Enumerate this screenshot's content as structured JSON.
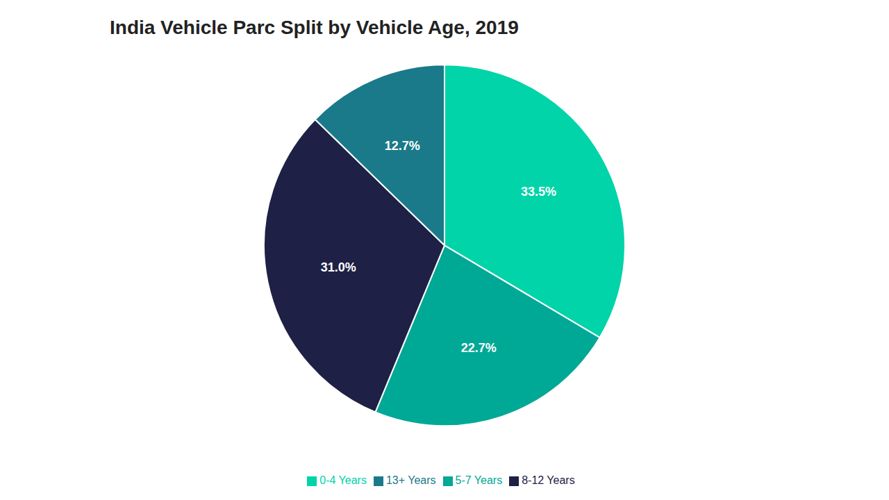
{
  "chart_data": {
    "type": "pie",
    "title": "India Vehicle Parc Split by Vehicle Age, 2019",
    "categories": [
      "0-4 Years",
      "5-7 Years",
      "8-12 Years",
      "13+ Years"
    ],
    "values": [
      33.5,
      22.7,
      31.0,
      12.7
    ],
    "value_labels": [
      "33.5%",
      "22.7%",
      "31.0%",
      "12.7%"
    ],
    "colors": [
      "#00D4A8",
      "#00A896",
      "#1E2145",
      "#1A7A8A"
    ],
    "data_labels": true,
    "legend": "bottom"
  }
}
